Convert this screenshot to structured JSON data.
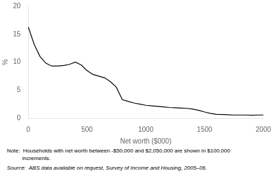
{
  "chart_data": {
    "type": "line",
    "xlabel": "Net worth ($000)",
    "ylabel": "%",
    "x": [
      0,
      50,
      100,
      150,
      200,
      250,
      300,
      350,
      400,
      450,
      500,
      550,
      600,
      650,
      700,
      750,
      800,
      850,
      900,
      950,
      1000,
      1050,
      1100,
      1150,
      1200,
      1250,
      1300,
      1350,
      1400,
      1450,
      1500,
      1550,
      1600,
      1650,
      1700,
      1750,
      1800,
      1850,
      1900,
      1950,
      2000
    ],
    "values": [
      16.3,
      13.2,
      11.0,
      9.8,
      9.3,
      9.3,
      9.4,
      9.6,
      10.0,
      9.5,
      8.5,
      7.8,
      7.5,
      7.2,
      6.5,
      5.5,
      3.3,
      3.0,
      2.7,
      2.5,
      2.3,
      2.2,
      2.1,
      2.0,
      1.9,
      1.85,
      1.8,
      1.75,
      1.6,
      1.4,
      1.1,
      0.85,
      0.7,
      0.65,
      0.6,
      0.55,
      0.55,
      0.55,
      0.5,
      0.55,
      0.55
    ],
    "color": "#000000",
    "xlim": [
      0,
      2000
    ],
    "ylim": [
      0,
      20
    ],
    "xticks": [
      0,
      500,
      1000,
      1500,
      2000
    ],
    "yticks": [
      0,
      5,
      10,
      15,
      20
    ],
    "grid": false,
    "annotations": [
      "Note:  Households with net worth between -$50,000 and $2,050,000 are shown in $100,000",
      "          increments.",
      "Source:  ABS data available on request, Survey of Income and Housing, 2005–06."
    ]
  }
}
